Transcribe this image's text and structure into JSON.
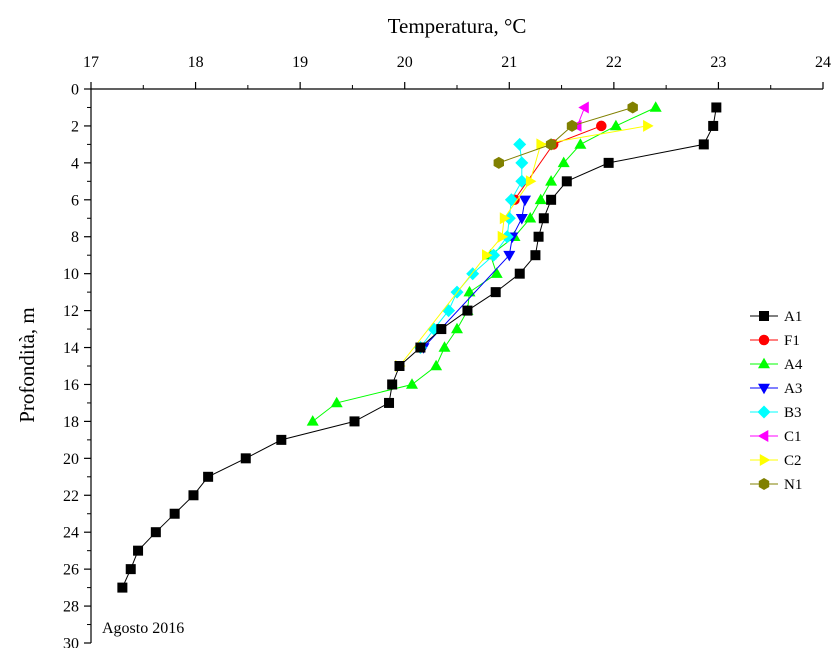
{
  "chart_data": {
    "type": "scatter",
    "xlabel": "Temperatura, °C",
    "ylabel": "Profondità, m",
    "annotation": "Agosto 2016",
    "xlim": [
      17,
      24
    ],
    "ylim": [
      0,
      30
    ],
    "y_inverted": true,
    "x_axis_position": "top",
    "x_ticks": [
      17,
      18,
      19,
      20,
      21,
      22,
      23,
      24
    ],
    "y_ticks": [
      0,
      2,
      4,
      6,
      8,
      10,
      12,
      14,
      16,
      18,
      20,
      22,
      24,
      26,
      28,
      30
    ],
    "grid": false,
    "legend_position": "right",
    "series": [
      {
        "name": "A1",
        "color": "#000000",
        "marker": "square",
        "points": [
          [
            22.98,
            1
          ],
          [
            22.95,
            2
          ],
          [
            22.86,
            3
          ],
          [
            21.95,
            4
          ],
          [
            21.55,
            5
          ],
          [
            21.4,
            6
          ],
          [
            21.33,
            7
          ],
          [
            21.28,
            8
          ],
          [
            21.25,
            9
          ],
          [
            21.1,
            10
          ],
          [
            20.87,
            11
          ],
          [
            20.6,
            12
          ],
          [
            20.35,
            13
          ],
          [
            20.15,
            14
          ],
          [
            19.95,
            15
          ],
          [
            19.88,
            16
          ],
          [
            19.85,
            17
          ],
          [
            19.52,
            18
          ],
          [
            18.82,
            19
          ],
          [
            18.48,
            20
          ],
          [
            18.12,
            21
          ],
          [
            17.98,
            22
          ],
          [
            17.8,
            23
          ],
          [
            17.62,
            24
          ],
          [
            17.45,
            25
          ],
          [
            17.38,
            26
          ],
          [
            17.3,
            27
          ]
        ]
      },
      {
        "name": "F1",
        "color": "#ff0000",
        "marker": "circle",
        "points": [
          [
            21.88,
            2
          ],
          [
            21.42,
            3
          ],
          [
            21.05,
            6
          ]
        ]
      },
      {
        "name": "A4",
        "color": "#00ff00",
        "marker": "triangle-up",
        "points": [
          [
            22.4,
            1
          ],
          [
            22.02,
            2
          ],
          [
            21.68,
            3
          ],
          [
            21.52,
            4
          ],
          [
            21.4,
            5
          ],
          [
            21.3,
            6
          ],
          [
            21.2,
            7
          ],
          [
            21.05,
            8
          ],
          [
            20.82,
            9
          ],
          [
            20.88,
            10
          ],
          [
            20.62,
            11
          ],
          [
            20.6,
            12
          ],
          [
            20.5,
            13
          ],
          [
            20.38,
            14
          ],
          [
            20.3,
            15
          ],
          [
            20.07,
            16
          ],
          [
            19.35,
            17
          ],
          [
            19.12,
            18
          ]
        ]
      },
      {
        "name": "A3",
        "color": "#0000ff",
        "marker": "triangle-down",
        "points": [
          [
            21.15,
            6
          ],
          [
            21.12,
            7
          ],
          [
            21.03,
            8
          ],
          [
            21.0,
            9
          ],
          [
            20.18,
            14
          ]
        ]
      },
      {
        "name": "B3",
        "color": "#00ffff",
        "marker": "diamond",
        "points": [
          [
            21.1,
            3
          ],
          [
            21.12,
            4
          ],
          [
            21.12,
            5
          ],
          [
            21.02,
            6
          ],
          [
            21.0,
            7
          ],
          [
            20.98,
            8
          ],
          [
            20.85,
            9
          ],
          [
            20.65,
            10
          ],
          [
            20.5,
            11
          ],
          [
            20.42,
            12
          ],
          [
            20.28,
            13
          ],
          [
            20.15,
            14
          ]
        ]
      },
      {
        "name": "C1",
        "color": "#ff00ff",
        "marker": "triangle-left",
        "points": [
          [
            21.72,
            1
          ],
          [
            21.65,
            2
          ]
        ]
      },
      {
        "name": "C2",
        "color": "#ffff00",
        "marker": "triangle-right",
        "points": [
          [
            22.32,
            2
          ],
          [
            21.3,
            3
          ],
          [
            21.2,
            5
          ],
          [
            20.95,
            7
          ],
          [
            20.93,
            8
          ],
          [
            20.78,
            9
          ],
          [
            19.95,
            15
          ]
        ]
      },
      {
        "name": "N1",
        "color": "#808000",
        "marker": "hexagon",
        "points": [
          [
            22.18,
            1
          ],
          [
            21.6,
            2
          ],
          [
            21.4,
            3
          ],
          [
            20.9,
            4
          ]
        ]
      }
    ]
  }
}
